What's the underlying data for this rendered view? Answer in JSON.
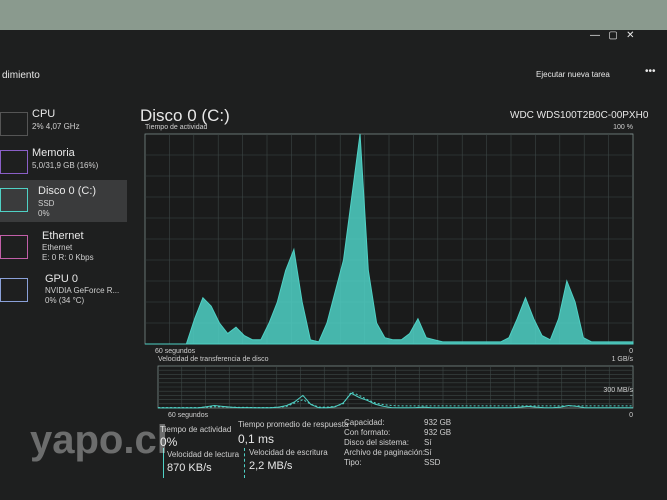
{
  "header": {
    "title": "dimiento",
    "action": "Ejecutar nueva tarea"
  },
  "sidebar": [
    {
      "name": "CPU",
      "detail": "2% 4,07 GHz"
    },
    {
      "name": "Memoria",
      "detail": "5,0/31,9 GB (16%)"
    },
    {
      "name": "Disco 0 (C:)",
      "detail": "SSD",
      "detail2": "0%"
    },
    {
      "name": "Ethernet",
      "detail": "Ethernet",
      "detail2": "E: 0 R: 0 Kbps"
    },
    {
      "name": "GPU 0",
      "detail": "NVIDIA GeForce R...",
      "detail2": "0% (34 °C)"
    }
  ],
  "main": {
    "title": "Disco 0 (C:)",
    "model": "WDC WDS100T2B0C-00PXH0"
  },
  "activity_chart": {
    "type": "area",
    "title": "Tiempo de actividad",
    "xlabel": "60 segundos",
    "color": "#4fd1c5",
    "grid": true,
    "ylim": [
      0,
      100
    ],
    "yticks": [
      0,
      {
        "value": 100,
        "label": "100 %"
      }
    ],
    "values": [
      0,
      0,
      0,
      0,
      0,
      0,
      12,
      22,
      18,
      10,
      5,
      8,
      4,
      2,
      2,
      10,
      20,
      35,
      45,
      20,
      2,
      1,
      10,
      25,
      40,
      70,
      100,
      35,
      10,
      3,
      2,
      2,
      5,
      12,
      3,
      2,
      1,
      1,
      1,
      1,
      1,
      1,
      1,
      1,
      3,
      12,
      22,
      12,
      4,
      2,
      12,
      30,
      20,
      3,
      1,
      1,
      1,
      1,
      1,
      1
    ]
  },
  "transfer_chart": {
    "type": "line",
    "title": "Velocidad de transferencia de disco",
    "xlabel": "60 segundos",
    "grid": true,
    "ylim": [
      0,
      1000
    ],
    "yticks": [
      0,
      {
        "value": 300,
        "label": "300 MB/s"
      },
      {
        "value": 1000,
        "label": "1 GB/s"
      }
    ],
    "series": [
      {
        "color": "#4fd1c5",
        "values": [
          2,
          2,
          2,
          2,
          2,
          2,
          30,
          60,
          40,
          20,
          10,
          10,
          5,
          5,
          5,
          20,
          60,
          150,
          300,
          80,
          5,
          5,
          30,
          120,
          350,
          250,
          180,
          90,
          40,
          10,
          5,
          5,
          10,
          20,
          5,
          5,
          5,
          5,
          5,
          5,
          5,
          5,
          5,
          5,
          5,
          20,
          40,
          20,
          5,
          5,
          20,
          60,
          40,
          5,
          5,
          5,
          5,
          5,
          5,
          5
        ]
      },
      {
        "color": "#4fd1c5",
        "dash": true,
        "values": [
          10,
          10,
          10,
          10,
          10,
          10,
          20,
          30,
          30,
          20,
          15,
          15,
          10,
          10,
          10,
          20,
          40,
          120,
          200,
          90,
          20,
          20,
          40,
          100,
          380,
          300,
          200,
          120,
          80,
          60,
          50,
          50,
          50,
          50,
          50,
          50,
          50,
          50,
          50,
          50,
          50,
          50,
          50,
          50,
          50,
          50,
          50,
          50,
          50,
          50,
          50,
          50,
          50,
          50,
          50,
          50,
          50,
          50,
          50,
          50
        ]
      }
    ]
  },
  "stats": [
    {
      "label": "Tiempo de actividad",
      "value": "0%"
    },
    {
      "label": "Tiempo promedio de respuesta",
      "value": "0,1 ms"
    },
    {
      "label": "Velocidad de lectura",
      "value": "870 KB/s"
    },
    {
      "label": "Velocidad de escritura",
      "value": "2,2 MB/s"
    }
  ],
  "properties": [
    {
      "label": "Capacidad:",
      "value": "932 GB"
    },
    {
      "label": "Con formato:",
      "value": "932 GB"
    },
    {
      "label": "Disco del sistema:",
      "value": "Sí"
    },
    {
      "label": "Archivo de paginación:",
      "value": "Sí"
    },
    {
      "label": "Tipo:",
      "value": "SSD"
    }
  ],
  "watermark": "yapo.cl"
}
